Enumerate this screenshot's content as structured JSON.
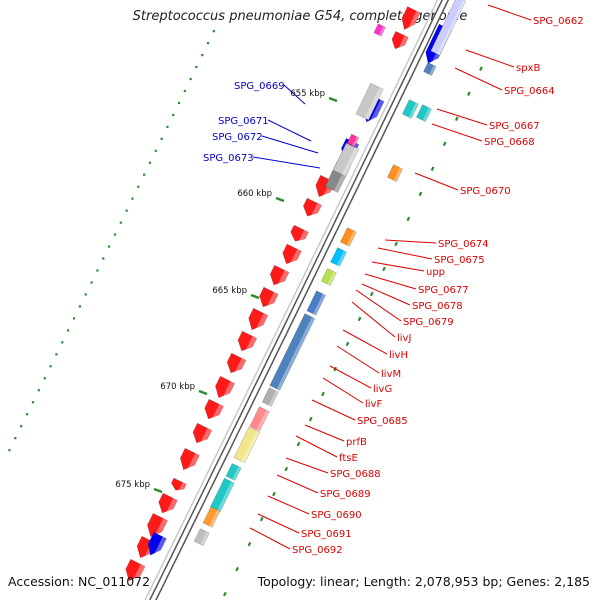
{
  "title": "Streptococcus pneumoniae G54, complete genome",
  "footer": {
    "accession": "Accession: NC_011072",
    "summary": "Topology: linear; Length: 2,078,953 bp; Genes: 2,185"
  },
  "colors": {
    "backbone": "#7a7a7a",
    "forward_strand": "#ff0000",
    "reverse_strand": "#0000ff",
    "label_right": "#dd0000",
    "label_left": "#0000cc",
    "tick": "#2e8b2e"
  },
  "scale_ticks": [
    "655 kbp",
    "660 kbp",
    "665 kbp",
    "670 kbp",
    "675 kbp"
  ],
  "labels_left": [
    "SPG_0669",
    "SPG_0671",
    "SPG_0672",
    "SPG_0673"
  ],
  "labels_right": [
    "SPG_0662",
    "spxB",
    "SPG_0664",
    "SPG_0667",
    "SPG_0668",
    "SPG_0670",
    "SPG_0674",
    "SPG_0675",
    "upp",
    "SPG_0677",
    "SPG_0678",
    "SPG_0679",
    "livJ",
    "livH",
    "livM",
    "livG",
    "livF",
    "SPG_0685",
    "prfB",
    "ftsE",
    "SPG_0688",
    "SPG_0689",
    "SPG_0690",
    "SPG_0691",
    "SPG_0692"
  ]
}
